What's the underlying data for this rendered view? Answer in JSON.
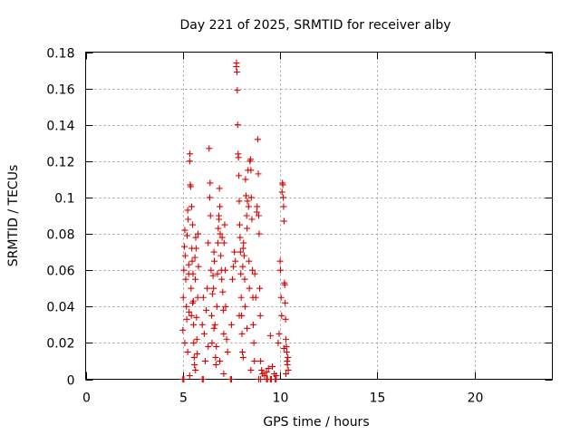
{
  "chart_data": {
    "type": "scatter",
    "title": "Day 221 of 2025, SRMTID for receiver alby",
    "xlabel": "GPS time / hours",
    "ylabel": "SRMTID / TECUs",
    "xlim": [
      0,
      24
    ],
    "ylim": [
      0,
      0.18
    ],
    "xticks": [
      0,
      5,
      10,
      15,
      20
    ],
    "xtick_labels": [
      "0",
      "5",
      "10",
      "15",
      "20"
    ],
    "yticks": [
      0,
      0.02,
      0.04,
      0.06,
      0.08,
      0.1,
      0.12,
      0.14,
      0.16,
      0.18
    ],
    "ytick_labels": [
      "0",
      "0.02",
      "0.04",
      "0.06",
      "0.08",
      "0.1",
      "0.12",
      "0.14",
      "0.16",
      "0.18"
    ],
    "grid": true,
    "legend": "none",
    "marker": "+",
    "color": "#dd0000",
    "points": [
      [
        5.0,
        0.027
      ],
      [
        5.02,
        0.045
      ],
      [
        5.05,
        0.06
      ],
      [
        5.08,
        0.073
      ],
      [
        5.1,
        0.082
      ],
      [
        5.12,
        0.068
      ],
      [
        5.15,
        0.055
      ],
      [
        5.18,
        0.04
      ],
      [
        5.2,
        0.033
      ],
      [
        5.22,
        0.079
      ],
      [
        5.25,
        0.093
      ],
      [
        5.27,
        0.088
      ],
      [
        5.3,
        0.063
      ],
      [
        5.32,
        0.037
      ],
      [
        5.35,
        0.12
      ],
      [
        5.36,
        0.124
      ],
      [
        5.38,
        0.107
      ],
      [
        5.4,
        0.106
      ],
      [
        5.42,
        0.05
      ],
      [
        5.44,
        0.035
      ],
      [
        5.46,
        0.072
      ],
      [
        5.48,
        0.065
      ],
      [
        5.5,
        0.085
      ],
      [
        5.52,
        0.058
      ],
      [
        5.54,
        0.043
      ],
      [
        5.56,
        0.02
      ],
      [
        5.58,
        0.012
      ],
      [
        5.6,
        0.008
      ],
      [
        5.62,
        0.067
      ],
      [
        5.64,
        0.055
      ],
      [
        5.66,
        0.078
      ],
      [
        5.68,
        0.072
      ],
      [
        5.7,
        0.034
      ],
      [
        5.72,
        0.022
      ],
      [
        5.74,
        0.014
      ],
      [
        5.76,
        0.045
      ],
      [
        5.78,
        0.08
      ],
      [
        5.8,
        0.062
      ],
      [
        5.3,
        0.058
      ],
      [
        5.45,
        0.095
      ],
      [
        5.55,
        0.03
      ],
      [
        5.65,
        0.005
      ],
      [
        5.1,
        0.02
      ],
      [
        5.25,
        0.015
      ],
      [
        5.35,
        0.002
      ],
      [
        5.5,
        0.042
      ],
      [
        6.0,
        0.03
      ],
      [
        6.05,
        0.045
      ],
      [
        6.1,
        0.025
      ],
      [
        6.15,
        0.01
      ],
      [
        6.2,
        0.038
      ],
      [
        6.25,
        0.05
      ],
      [
        6.3,
        0.075
      ],
      [
        6.35,
        0.127
      ],
      [
        6.38,
        0.1
      ],
      [
        6.4,
        0.108
      ],
      [
        6.42,
        0.09
      ],
      [
        6.45,
        0.06
      ],
      [
        6.48,
        0.035
      ],
      [
        6.5,
        0.02
      ],
      [
        6.52,
        0.047
      ],
      [
        6.55,
        0.057
      ],
      [
        6.58,
        0.05
      ],
      [
        6.6,
        0.07
      ],
      [
        6.62,
        0.065
      ],
      [
        6.65,
        0.03
      ],
      [
        6.68,
        0.012
      ],
      [
        6.7,
        0.008
      ],
      [
        6.72,
        0.018
      ],
      [
        6.75,
        0.04
      ],
      [
        6.78,
        0.058
      ],
      [
        6.8,
        0.075
      ],
      [
        6.82,
        0.083
      ],
      [
        6.85,
        0.09
      ],
      [
        6.86,
        0.088
      ],
      [
        6.88,
        0.105
      ],
      [
        6.9,
        0.095
      ],
      [
        6.92,
        0.08
      ],
      [
        6.95,
        0.068
      ],
      [
        6.98,
        0.06
      ],
      [
        7.0,
        0.055
      ],
      [
        7.02,
        0.078
      ],
      [
        7.05,
        0.048
      ],
      [
        7.08,
        0.038
      ],
      [
        7.1,
        0.025
      ],
      [
        7.12,
        0.075
      ],
      [
        7.15,
        0.085
      ],
      [
        7.18,
        0.06
      ],
      [
        7.2,
        0.04
      ],
      [
        7.25,
        0.022
      ],
      [
        7.3,
        0.015
      ],
      [
        6.3,
        0.018
      ],
      [
        6.6,
        0.028
      ],
      [
        6.9,
        0.01
      ],
      [
        7.1,
        0.003
      ],
      [
        7.5,
        0.03
      ],
      [
        7.55,
        0.055
      ],
      [
        7.6,
        0.062
      ],
      [
        7.65,
        0.07
      ],
      [
        7.7,
        0.065
      ],
      [
        7.75,
        0.172
      ],
      [
        7.76,
        0.174
      ],
      [
        7.78,
        0.169
      ],
      [
        7.8,
        0.159
      ],
      [
        7.82,
        0.14
      ],
      [
        7.84,
        0.124
      ],
      [
        7.86,
        0.122
      ],
      [
        7.88,
        0.112
      ],
      [
        7.9,
        0.098
      ],
      [
        7.92,
        0.085
      ],
      [
        7.94,
        0.078
      ],
      [
        7.96,
        0.07
      ],
      [
        7.98,
        0.058
      ],
      [
        8.0,
        0.045
      ],
      [
        8.02,
        0.035
      ],
      [
        8.04,
        0.025
      ],
      [
        8.06,
        0.015
      ],
      [
        8.08,
        0.062
      ],
      [
        8.1,
        0.072
      ],
      [
        8.12,
        0.075
      ],
      [
        8.15,
        0.068
      ],
      [
        8.18,
        0.055
      ],
      [
        8.2,
        0.04
      ],
      [
        8.22,
        0.11
      ],
      [
        8.25,
        0.101
      ],
      [
        8.28,
        0.09
      ],
      [
        8.3,
        0.083
      ],
      [
        8.32,
        0.098
      ],
      [
        8.35,
        0.115
      ],
      [
        8.38,
        0.095
      ],
      [
        8.4,
        0.065
      ],
      [
        8.42,
        0.05
      ],
      [
        8.45,
        0.12
      ],
      [
        8.48,
        0.121
      ],
      [
        8.5,
        0.115
      ],
      [
        8.52,
        0.1
      ],
      [
        8.55,
        0.088
      ],
      [
        8.58,
        0.06
      ],
      [
        8.6,
        0.045
      ],
      [
        8.62,
        0.03
      ],
      [
        8.65,
        0.02
      ],
      [
        8.68,
        0.01
      ],
      [
        7.9,
        0.035
      ],
      [
        8.1,
        0.012
      ],
      [
        8.3,
        0.028
      ],
      [
        8.5,
        0.005
      ],
      [
        8.7,
        0.058
      ],
      [
        8.75,
        0.045
      ],
      [
        8.8,
        0.092
      ],
      [
        8.82,
        0.095
      ],
      [
        8.85,
        0.132
      ],
      [
        8.88,
        0.113
      ],
      [
        8.9,
        0.09
      ],
      [
        8.92,
        0.08
      ],
      [
        8.95,
        0.05
      ],
      [
        8.98,
        0.035
      ],
      [
        9.0,
        0.01
      ],
      [
        9.05,
        0.005
      ],
      [
        9.1,
        0.003
      ],
      [
        9.2,
        0.002
      ],
      [
        9.3,
        0.004
      ],
      [
        9.4,
        0.006
      ],
      [
        9.5,
        0.024
      ],
      [
        9.6,
        0.007
      ],
      [
        9.7,
        0.003
      ],
      [
        9.8,
        0.002
      ],
      [
        9.9,
        0.02
      ],
      [
        9.95,
        0.025
      ],
      [
        10.0,
        0.065
      ],
      [
        10.02,
        0.06
      ],
      [
        10.05,
        0.045
      ],
      [
        10.08,
        0.035
      ],
      [
        10.1,
        0.103
      ],
      [
        10.12,
        0.108
      ],
      [
        10.14,
        0.107
      ],
      [
        10.16,
        0.1
      ],
      [
        10.18,
        0.095
      ],
      [
        10.2,
        0.087
      ],
      [
        10.22,
        0.053
      ],
      [
        10.24,
        0.052
      ],
      [
        10.26,
        0.042
      ],
      [
        10.28,
        0.033
      ],
      [
        10.3,
        0.022
      ],
      [
        10.32,
        0.018
      ],
      [
        10.34,
        0.015
      ],
      [
        10.36,
        0.01
      ],
      [
        10.38,
        0.008
      ],
      [
        10.4,
        0.012
      ],
      [
        10.42,
        0.005
      ],
      [
        10.2,
        0.017
      ],
      [
        10.3,
        0.003
      ],
      [
        5.0,
        0.0
      ],
      [
        5.05,
        0.0
      ],
      [
        6.0,
        0.0
      ],
      [
        6.05,
        0.0
      ],
      [
        7.45,
        0.0
      ],
      [
        7.5,
        0.0
      ],
      [
        8.9,
        0.0
      ],
      [
        9.0,
        0.0
      ],
      [
        9.3,
        0.0
      ],
      [
        9.35,
        0.0
      ],
      [
        9.5,
        0.0
      ],
      [
        9.55,
        0.0
      ],
      [
        9.75,
        0.0
      ],
      [
        9.8,
        0.0
      ]
    ]
  }
}
